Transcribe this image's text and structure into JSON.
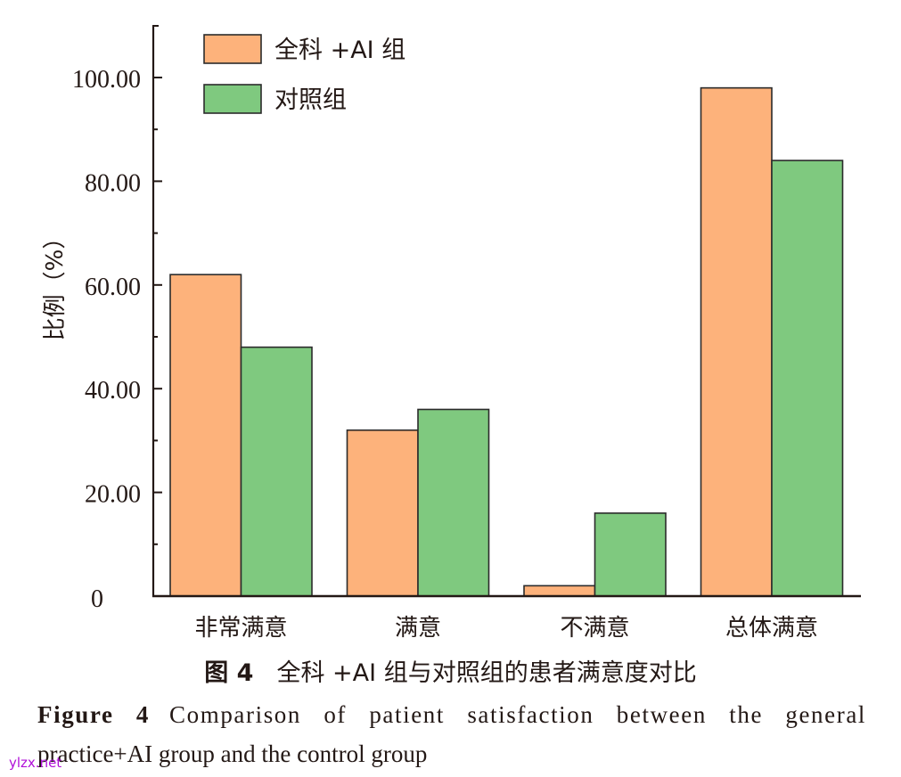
{
  "chart_data": {
    "type": "bar",
    "title": "",
    "xlabel": "",
    "ylabel": "比例（%）",
    "ylim": [
      0,
      110
    ],
    "yticks": [
      0,
      20,
      40,
      60,
      80,
      100
    ],
    "ytick_labels": [
      "0",
      "20.00",
      "40.00",
      "60.00",
      "80.00",
      "100.00"
    ],
    "grid": false,
    "legend_position": "upper left",
    "categories": [
      "非常满意",
      "满意",
      "不满意",
      "总体满意"
    ],
    "series": [
      {
        "name": "全科 +AI 组",
        "color": "#fdb27b",
        "values": [
          62,
          32,
          2,
          98
        ]
      },
      {
        "name": "对照组",
        "color": "#7fc97f",
        "values": [
          48,
          36,
          16,
          84
        ]
      }
    ]
  },
  "caption": {
    "cn_figure_no": "图 4",
    "cn_text": "全科 +AI 组与对照组的患者满意度对比",
    "en_figure_no": "Figure 4",
    "en_line1": "Comparison of patient satisfaction between the general",
    "en_line2": "practice+AI group and the control group"
  },
  "watermark": "ylzx.net"
}
